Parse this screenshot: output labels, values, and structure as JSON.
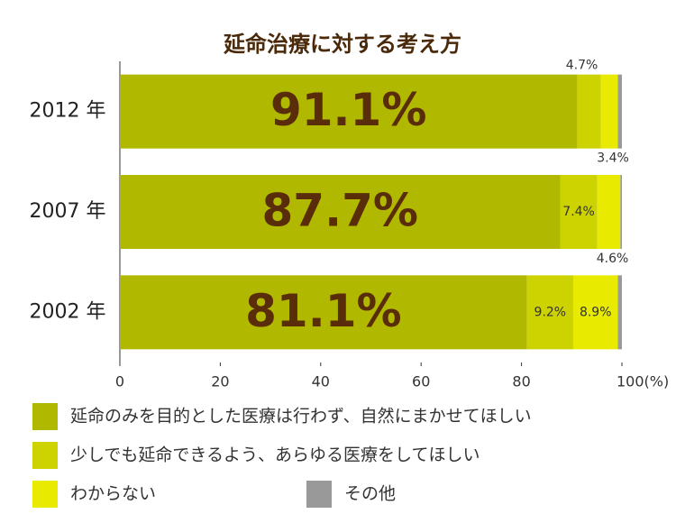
{
  "chart_data": {
    "type": "stacked-barh",
    "title": "延命治療に対する考え方",
    "categories": [
      "2012 年",
      "2007 年",
      "2002 年"
    ],
    "series": [
      {
        "name": "延命のみを目的とした医療は行わず、自然にまかせてほしい",
        "color": "#b0b800",
        "values": [
          91.1,
          87.7,
          81.1
        ],
        "value_labels": [
          "91.1%",
          "87.7%",
          "81.1%"
        ]
      },
      {
        "name": "少しでも延命できるよう、あらゆる医療をしてほしい",
        "color": "#cdd300",
        "values": [
          4.7,
          7.4,
          9.2
        ],
        "value_labels": [
          "4.7%",
          "7.4%",
          "9.2%"
        ]
      },
      {
        "name": "わからない",
        "color": "#e8eb00",
        "values": [
          3.4,
          4.6,
          8.9
        ],
        "value_labels": [
          "3.4%",
          "4.6%",
          "8.9%"
        ]
      },
      {
        "name": "その他",
        "color": "#999999",
        "values": [
          0.8,
          0.3,
          0.8
        ]
      }
    ],
    "xlim": [
      0,
      100
    ],
    "xticks": [
      0,
      20,
      40,
      60,
      80,
      {
        "value": 100,
        "label": "100(%)"
      }
    ]
  }
}
